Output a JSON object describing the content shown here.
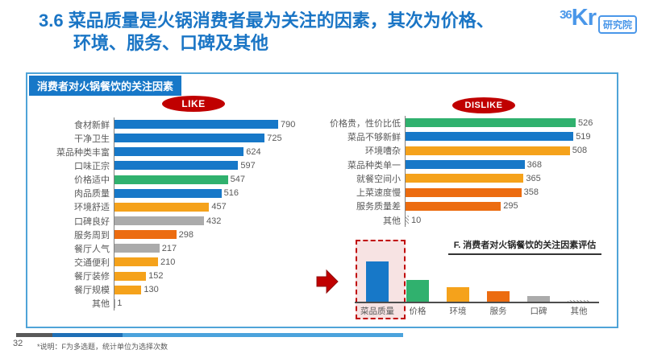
{
  "page": {
    "title_line1": "3.6 菜品质量是火锅消费者最为关注的因素，其次为价格、",
    "title_line2": "环境、服务、口碑及其他",
    "page_number": "32",
    "footnote": "*说明：F为多选题，统计单位为选择次数"
  },
  "logo": {
    "num": "36",
    "kr": "Kr",
    "suffix": "研究院"
  },
  "panel": {
    "header": "消费者对火锅餐饮的关注因素"
  },
  "colors": {
    "blue": "#1778c8",
    "green": "#30b16e",
    "yellow": "#f5a21b",
    "orange": "#ec6c10",
    "gray": "#ababab",
    "red": "#c00000",
    "panel_border": "#4fa4d8",
    "title_blue": "#1a75c5",
    "logo_blue": "#4a97e9"
  },
  "chart_data": [
    {
      "type": "bar",
      "orientation": "horizontal",
      "title": "LIKE",
      "categories": [
        "食材新鲜",
        "干净卫生",
        "菜品种类丰富",
        "口味正宗",
        "价格适中",
        "肉品质量",
        "环境舒适",
        "口碑良好",
        "服务周到",
        "餐厅人气",
        "交通便利",
        "餐厅装修",
        "餐厅规模",
        "其他"
      ],
      "values": [
        790,
        725,
        624,
        597,
        547,
        516,
        457,
        432,
        298,
        217,
        210,
        152,
        130,
        1
      ],
      "colors": [
        "blue",
        "blue",
        "blue",
        "blue",
        "green",
        "blue",
        "yellow",
        "gray",
        "orange",
        "gray",
        "yellow",
        "yellow",
        "yellow",
        "gray"
      ],
      "xlim": [
        0,
        790
      ],
      "value_labels": true
    },
    {
      "type": "bar",
      "orientation": "horizontal",
      "title": "DISLIKE",
      "categories": [
        "价格贵，性价比低",
        "菜品不够新鲜",
        "环境嘈杂",
        "菜品种类单一",
        "就餐空间小",
        "上菜速度慢",
        "服务质量差",
        "其他"
      ],
      "values": [
        526,
        519,
        508,
        368,
        365,
        358,
        295,
        10
      ],
      "colors": [
        "green",
        "blue",
        "yellow",
        "blue",
        "yellow",
        "orange",
        "orange",
        "hatch"
      ],
      "xlim": [
        0,
        526
      ],
      "value_labels": true
    },
    {
      "type": "bar",
      "orientation": "vertical",
      "title": "F. 消费者对火锅餐饮的关注因素评估",
      "categories": [
        "菜品质量",
        "价格",
        "环境",
        "服务",
        "口碑",
        "其他"
      ],
      "relative_values": [
        1.0,
        0.54,
        0.36,
        0.26,
        0.14,
        0.04
      ],
      "colors": [
        "blue",
        "green",
        "yellow",
        "orange",
        "gray",
        "hatch"
      ],
      "highlighted_category": "菜品质量",
      "value_labels": false
    }
  ]
}
